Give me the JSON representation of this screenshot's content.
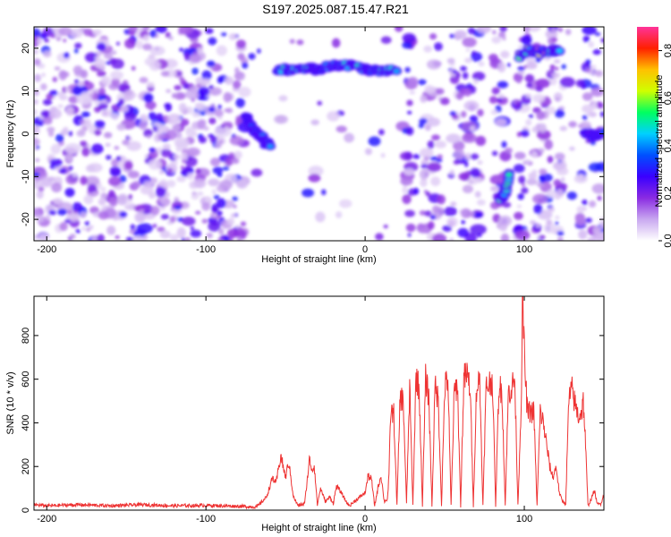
{
  "title": "S197.2025.087.15.47.R21",
  "chart_data": [
    {
      "type": "heatmap",
      "xlabel": "Height of straight line (km)",
      "ylabel": "Frequency (Hz)",
      "xlim": [
        -208,
        150
      ],
      "ylim": [
        -25,
        25
      ],
      "x_ticks": [
        -200,
        -100,
        0,
        100
      ],
      "y_ticks": [
        -20,
        -10,
        0,
        10,
        20
      ],
      "colorbar": {
        "label": "Normalized spectral amplitude",
        "range": [
          0.0,
          0.9
        ],
        "ticks": [
          0.0,
          0.2,
          0.4,
          0.6,
          0.8
        ],
        "colors": [
          "#ffffff",
          "#c9a8f0",
          "#8a2be2",
          "#3a00ff",
          "#0050ff",
          "#00d0ff",
          "#00ff60",
          "#d0ff00",
          "#ffc000",
          "#ff2000",
          "#ff3399"
        ]
      },
      "ridges": [
        {
          "x": [
            -75,
            -70,
            -65,
            -60
          ],
          "y": [
            4,
            1,
            -1,
            -3
          ],
          "level": 0.35
        },
        {
          "x": [
            -55,
            -45,
            -35,
            -30,
            -20,
            -10,
            0,
            10,
            20
          ],
          "y": [
            15,
            15,
            15.5,
            15,
            16,
            16,
            15,
            14.5,
            15
          ],
          "level": 0.45
        },
        {
          "x": [
            85,
            88,
            90
          ],
          "y": [
            -15,
            -14,
            -9
          ],
          "level": 0.6
        },
        {
          "x": [
            97,
            103,
            110,
            118,
            122
          ],
          "y": [
            18,
            19.5,
            19,
            19.5,
            19
          ],
          "level": 0.65
        },
        {
          "x": [
            138,
            145,
            150
          ],
          "y": [
            0,
            -0.5,
            0
          ],
          "level": 0.35
        }
      ],
      "noise_gaps": [
        [
          -75,
          25
        ],
        [
          30,
          35
        ],
        [
          48,
          53
        ],
        [
          73,
          80
        ],
        [
          88,
          95
        ],
        [
          125,
          135
        ]
      ]
    },
    {
      "type": "line",
      "xlabel": "Height of straight line (km)",
      "ylabel": "SNR (10 * v/v)",
      "xlim": [
        -208,
        150
      ],
      "ylim": [
        0,
        980
      ],
      "x_ticks": [
        -200,
        -100,
        0,
        100
      ],
      "y_ticks": [
        0,
        200,
        400,
        600,
        800
      ],
      "color": "#ee3333",
      "series": [
        {
          "x": [
            -208,
            -200,
            -180,
            -160,
            -140,
            -120,
            -100,
            -80,
            -68,
            -62,
            -58,
            -56,
            -53,
            -50,
            -48,
            -45,
            -42,
            -38,
            -35,
            -33,
            -32,
            -30,
            -28,
            -25,
            -22,
            -20,
            -18,
            -15,
            -12,
            -10,
            -5,
            0,
            2,
            4,
            6,
            8,
            10,
            12,
            14,
            15,
            16,
            18,
            20,
            22,
            24,
            26,
            28,
            30,
            32,
            34,
            36,
            38,
            40,
            42,
            44,
            46,
            48,
            50,
            52,
            54,
            56,
            58,
            60,
            62,
            64,
            66,
            68,
            70,
            72,
            74,
            76,
            78,
            80,
            82,
            84,
            86,
            88,
            90,
            92,
            94,
            96,
            98,
            99,
            100,
            101,
            102,
            104,
            106,
            108,
            110,
            112,
            114,
            116,
            118,
            120,
            122,
            124,
            126,
            128,
            130,
            132,
            134,
            136,
            137,
            138,
            140,
            142,
            144,
            146,
            148,
            150
          ],
          "y": [
            25,
            20,
            25,
            20,
            25,
            20,
            22,
            18,
            15,
            60,
            150,
            120,
            250,
            150,
            220,
            60,
            20,
            30,
            230,
            180,
            210,
            25,
            100,
            40,
            60,
            30,
            110,
            80,
            40,
            20,
            50,
            80,
            160,
            140,
            20,
            100,
            160,
            40,
            50,
            150,
            450,
            440,
            20,
            520,
            500,
            30,
            560,
            20,
            620,
            550,
            20,
            600,
            520,
            20,
            580,
            500,
            20,
            560,
            600,
            20,
            540,
            580,
            20,
            600,
            620,
            560,
            20,
            560,
            600,
            20,
            560,
            580,
            600,
            20,
            560,
            550,
            20,
            540,
            560,
            600,
            20,
            480,
            980,
            720,
            560,
            450,
            450,
            450,
            20,
            450,
            400,
            300,
            200,
            150,
            200,
            80,
            40,
            30,
            510,
            550,
            480,
            430,
            450,
            500,
            380,
            20,
            50,
            90,
            25,
            30,
            70
          ]
        }
      ]
    }
  ]
}
